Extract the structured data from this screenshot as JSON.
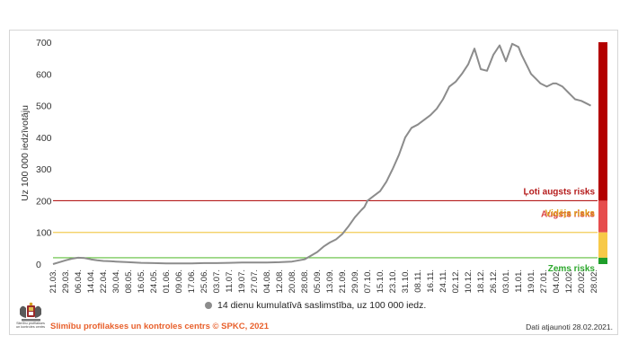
{
  "chart_data": {
    "type": "line",
    "ylabel": "Uz 100 000 iedzīvotāju",
    "ylim": [
      0,
      700
    ],
    "yticks": [
      0,
      100,
      200,
      300,
      400,
      500,
      600,
      700
    ],
    "x_tick_labels": [
      "21.03.",
      "29.03.",
      "06.04.",
      "14.04.",
      "22.04.",
      "30.04.",
      "08.05.",
      "16.05.",
      "24.05.",
      "01.06.",
      "09.06.",
      "17.06.",
      "25.06.",
      "03.07.",
      "11.07.",
      "19.07.",
      "27.07.",
      "04.08.",
      "12.08.",
      "20.08.",
      "28.08.",
      "05.09.",
      "13.09.",
      "21.09.",
      "29.09.",
      "07.10.",
      "15.10.",
      "23.10.",
      "31.10.",
      "08.11.",
      "16.11.",
      "24.11.",
      "02.12.",
      "10.12.",
      "18.12.",
      "26.12.",
      "03.01.",
      "11.01.",
      "19.01.",
      "27.01.",
      "04.02.",
      "12.02.",
      "20.02.",
      "28.02."
    ],
    "series": [
      {
        "name": "14 dienu kumulatīvā saslimstība, uz 100 000 iedz.",
        "color": "#8c8c8c",
        "x": [
          0,
          4,
          8,
          12,
          16,
          20,
          24,
          28,
          32,
          36,
          40,
          48,
          56,
          64,
          72,
          80,
          88,
          96,
          104,
          112,
          120,
          128,
          136,
          144,
          152,
          160,
          168,
          172,
          176,
          180,
          184,
          188,
          192,
          196,
          198,
          200,
          204,
          208,
          212,
          216,
          220,
          224,
          228,
          232,
          236,
          240,
          244,
          248,
          252,
          256,
          260,
          264,
          268,
          272,
          276,
          280,
          284,
          288,
          292,
          294,
          296,
          298,
          300,
          302,
          304,
          306,
          308,
          310,
          312,
          314,
          316,
          318,
          320,
          324,
          328,
          332,
          336,
          340,
          342
        ],
        "y": [
          0,
          6,
          12,
          17,
          20,
          19,
          15,
          12,
          10,
          9,
          8,
          6,
          4,
          3,
          2,
          2,
          2,
          3,
          3,
          4,
          5,
          5,
          5,
          6,
          8,
          15,
          38,
          55,
          68,
          78,
          95,
          120,
          148,
          170,
          180,
          200,
          215,
          230,
          260,
          300,
          345,
          400,
          430,
          440,
          455,
          470,
          490,
          520,
          560,
          575,
          600,
          630,
          680,
          615,
          610,
          660,
          690,
          640,
          695,
          690,
          685,
          660,
          640,
          620,
          600,
          590,
          580,
          570,
          565,
          560,
          565,
          570,
          570,
          560,
          540,
          520,
          515,
          505,
          500
        ]
      }
    ],
    "thresholds": [
      {
        "value": 200,
        "color": "#b51c1c",
        "label": "Ļoti augsts risks",
        "band_min": 200,
        "band_max": 700,
        "band_color": "#b30000"
      },
      {
        "value": 100,
        "color": "#f2cc55",
        "label": "Augsts risks",
        "band_min": 100,
        "band_max": 200,
        "band_color": "#e64d4d"
      },
      {
        "value": 20,
        "color": "#5fbf3b",
        "label": "Vidējs risks",
        "band_min": 20,
        "band_max": 100,
        "band_color": "#f7c948"
      },
      {
        "value": 0,
        "color": "#2ea82e",
        "label": "Zems risks",
        "band_min": 0,
        "band_max": 20,
        "band_color": "#1e9e2a"
      }
    ],
    "legend_position": "bottom",
    "grid": false
  },
  "footer": {
    "source": "Slimību profilakses un kontroles centrs © SPKC, 2021",
    "updated": "Dati atjaunoti 28.02.2021."
  },
  "logo": {
    "icon": "coat-of-arms-icon",
    "text_line1": "Slimību profilakses",
    "text_line2": "un kontroles centrs"
  }
}
